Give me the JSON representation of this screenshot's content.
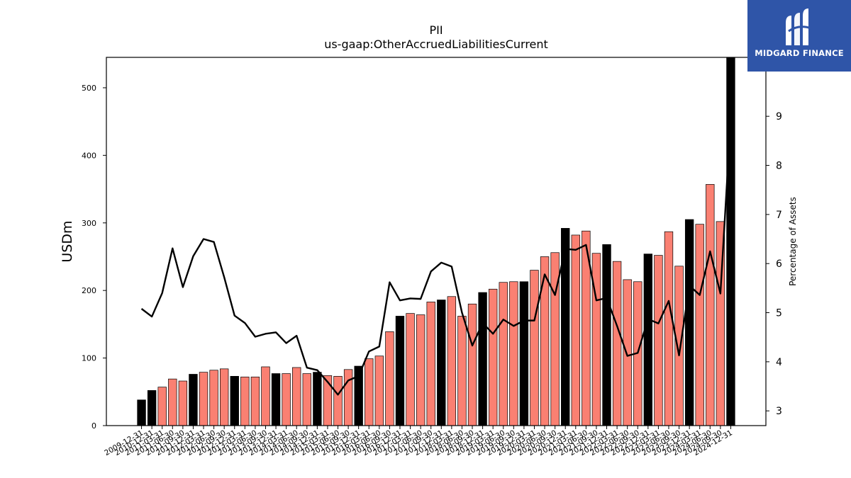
{
  "brand": {
    "name": "MIDGARD FINANCE",
    "logo_icon": "midgard-m-logo",
    "background": "#2f55a8"
  },
  "colors": {
    "bar_default": "#fa8072",
    "bar_highlight": "#000000",
    "line": "#000000"
  },
  "chart_data": {
    "type": "bar",
    "title": "PII",
    "subtitle": "us-gaap:OtherAccruedLiabilitiesCurrent",
    "ylabel": "USDm",
    "y2label": "Percentage of Assets",
    "ylim": [
      0,
      545
    ],
    "y2lim": [
      2.7,
      10.2
    ],
    "yticks": [
      0,
      100,
      200,
      300,
      400,
      500
    ],
    "y2ticks": [
      3,
      4,
      5,
      6,
      7,
      8,
      9
    ],
    "categories": [
      "2009-12-31",
      "2010-12-31",
      "2011-03-31",
      "2011-06-30",
      "2011-09-30",
      "2011-12-31",
      "2012-03-31",
      "2012-06-30",
      "2012-09-30",
      "2012-12-31",
      "2013-03-31",
      "2013-06-30",
      "2013-09-30",
      "2013-12-31",
      "2014-03-31",
      "2014-06-30",
      "2014-09-30",
      "2014-12-31",
      "2015-03-31",
      "2015-06-30",
      "2015-09-30",
      "2015-12-31",
      "2016-03-31",
      "2016-06-30",
      "2016-09-30",
      "2016-12-31",
      "2017-03-31",
      "2017-06-30",
      "2017-09-30",
      "2017-12-31",
      "2018-03-31",
      "2018-06-30",
      "2018-09-30",
      "2018-12-31",
      "2019-03-31",
      "2019-06-30",
      "2019-09-30",
      "2019-12-31",
      "2020-03-31",
      "2020-06-30",
      "2020-09-30",
      "2020-12-31",
      "2021-03-31",
      "2021-06-30",
      "2021-09-30",
      "2021-12-31",
      "2022-03-31",
      "2022-06-30",
      "2022-09-30",
      "2022-12-31",
      "2023-03-31",
      "2023-06-30",
      "2023-09-30",
      "2023-12-31",
      "2024-03-31",
      "2024-06-30",
      "2024-09-30",
      "2024-12-31"
    ],
    "highlight_categories": [
      "2009-12-31",
      "2010-12-31",
      "2011-12-31",
      "2012-12-31",
      "2013-12-31",
      "2014-12-31",
      "2015-12-31",
      "2016-12-31",
      "2017-12-31",
      "2018-12-31",
      "2019-12-31",
      "2020-12-31",
      "2021-12-31",
      "2022-12-31",
      "2023-12-31",
      "2024-12-31"
    ],
    "series": [
      {
        "name": "",
        "type": "bar",
        "axis": "left",
        "values": [
          38,
          52,
          57,
          69,
          66,
          76,
          79,
          82,
          84,
          73,
          72,
          72,
          87,
          77,
          77,
          86,
          77,
          79,
          74,
          73,
          83,
          88,
          99,
          103,
          139,
          162,
          166,
          164,
          183,
          186,
          191,
          162,
          180,
          197,
          202,
          212,
          213,
          213,
          230,
          250,
          256,
          292,
          282,
          288,
          255,
          268,
          243,
          216,
          213,
          254,
          252,
          287,
          236,
          305,
          298,
          357,
          302,
          545
        ]
      },
      {
        "name": "",
        "type": "line",
        "axis": "right",
        "values": [
          5.08,
          4.92,
          5.4,
          6.31,
          5.52,
          6.15,
          6.5,
          6.44,
          5.72,
          4.94,
          4.79,
          4.51,
          4.57,
          4.6,
          4.38,
          4.53,
          3.88,
          3.83,
          3.59,
          3.33,
          3.62,
          3.71,
          4.21,
          4.31,
          5.62,
          5.25,
          5.29,
          5.28,
          5.84,
          6.02,
          5.94,
          5.0,
          4.33,
          4.79,
          4.57,
          4.86,
          4.73,
          4.84,
          4.84,
          5.78,
          5.36,
          6.3,
          6.28,
          6.38,
          5.25,
          5.3,
          4.73,
          4.12,
          4.18,
          4.87,
          4.78,
          5.24,
          4.13,
          5.55,
          5.36,
          6.25,
          5.39,
          8.96
        ]
      }
    ]
  }
}
